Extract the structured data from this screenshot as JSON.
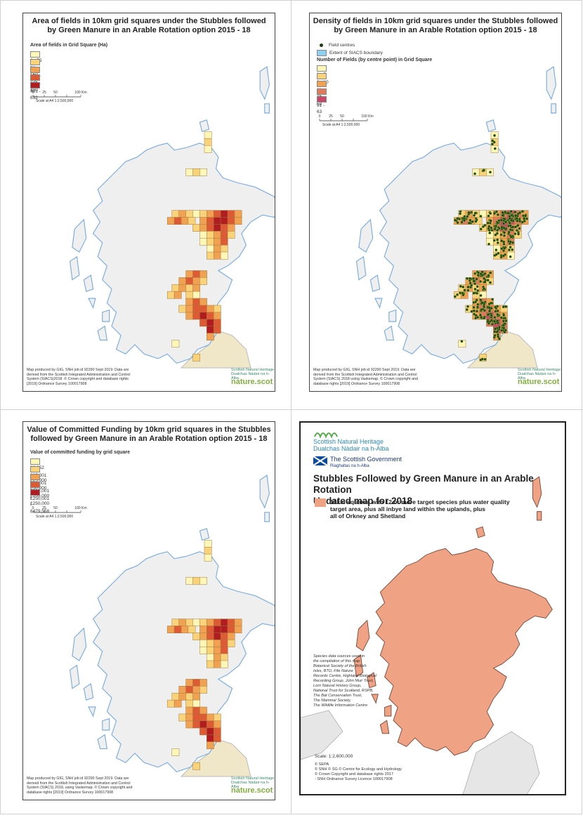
{
  "panel1": {
    "title_line1": "Area of fields in 10km grid squares under the Stubbles followed",
    "title_line2": "by Green Manure in an Arable Rotation option 2015 - 18",
    "legend_title": "Area of fields in Grid Square (Ha)",
    "legend": [
      {
        "label": "0 - 75",
        "color": "#fff6b8"
      },
      {
        "label": "76 - 150",
        "color": "#f9d27a"
      },
      {
        "label": "151 - 275",
        "color": "#f1a152"
      },
      {
        "label": "276 - 400",
        "color": "#dd5a35"
      },
      {
        "label": "401 - 632",
        "color": "#b11c21"
      }
    ],
    "scale_ticks": [
      "0",
      "25",
      "50",
      "",
      "100 Km"
    ],
    "scale_text": "Scale at A4 1:2,500,000",
    "credit": [
      "Map produced by GIG, SNH job id 92290 Sept 2019. Data are",
      "derived from the Scottish Integrated Administration and Control",
      "System (SIACS)2018. © Crown copyright and database rights",
      "[2019] Ordnance Survey 100017908"
    ],
    "logo": [
      "Scottish Natural Heritage",
      "Dualchas Nàdair na h-Alba"
    ],
    "nature": "nature.scot"
  },
  "panel2": {
    "title_line1": "Density of fields in 10km grid squares under the Stubbles followed",
    "title_line2": "by Green Manure in an Arable Rotation option 2015 - 18",
    "field_centres": "Field centres",
    "siacs": "Extent of SIACS boundary",
    "legend_title": "Number of Fields (by centre point) in Grid Square",
    "legend": [
      {
        "label": "1 - 5",
        "color": "#fff6b8"
      },
      {
        "label": "6 - 10",
        "color": "#f9d27a"
      },
      {
        "label": "11 - 25",
        "color": "#f1a152"
      },
      {
        "label": "26 - 50",
        "color": "#e07a5c"
      },
      {
        "label": "51 - 63",
        "color": "#c9486a"
      }
    ],
    "scale_ticks": [
      "0",
      "25",
      "50",
      "",
      "100 Km"
    ],
    "scale_text": "Scale at A4 1:2,500,000",
    "credit": [
      "Map produced by GIG, SNH job id 92290 Sept 2019. Data are",
      "derived from the Scottish Integrated Administration and Control",
      "System (SIACS) 2018 using Vaskemap. © Crown copyright and",
      "database rights [2019] Ordnance Survey 100017908"
    ],
    "logo": [
      "Scottish Natural Heritage",
      "Dualchas Nàdair na h-Alba"
    ],
    "nature": "nature.scot"
  },
  "panel3": {
    "title_line1": "Value of Committed Funding by 10km grid squares in the Stubbles",
    "title_line2": "followed by Green Manure in an Arable Rotation option 2015 - 18",
    "legend_title": "Value of committed funding by grid square",
    "legend": [
      {
        "label": "£3,352 - £25,000",
        "color": "#fff6b8"
      },
      {
        "label": "£25,001 - £50,000",
        "color": "#f9d27a"
      },
      {
        "label": "£50,001 - £100,000",
        "color": "#f1a152"
      },
      {
        "label": "£100,001 - £250,000",
        "color": "#dd5a35"
      },
      {
        "label": "£250,001 - £479,558",
        "color": "#b11c21"
      }
    ],
    "scale_ticks": [
      "0",
      "25",
      "50",
      "",
      "100 Km"
    ],
    "scale_text": "Scale at A4 1:2,500,000",
    "credit": [
      "Map produced by GIG, SNH job id 92290 Sept 2019. Data are",
      "derived from the Scottish Integrated Administration and Control",
      "System (SIACS) 2018, using Vaskemap. © Crown copyright and",
      "database rights [2019] Ordnance Survey 100017908"
    ],
    "logo": [
      "Scottish Natural Heritage",
      "Dualchas Nàdair na h-Alba"
    ],
    "nature": "nature.scot"
  },
  "panel4": {
    "snh1": "Scottish Natural Heritage",
    "snh2": "Dualchas Nàdair na h-Alba",
    "gov1": "The Scottish Government",
    "gov2": "Riaghaltas na h-Alba",
    "title_line1": "Stubbles Followed by Green Manure in an Arable Rotation",
    "title_line2": "Updated map for 2018",
    "legend_lines": [
      "10km squares with 12 or more target species plus water quality",
      "target area, plus all inbye land within the uplands, plus",
      "all of Orkney and Shetland"
    ],
    "legend_color": "#f0a384",
    "sources": [
      "Species data sources used in",
      "the compilation of this map",
      "Botanical Society of the British",
      "Isles, BTO, Fife Nature",
      "Records Centre, Highland Biological",
      "Recording Group, John Muir Trust,",
      "Lorn Natural History Group,",
      "National Trust for Scotland, RSPB,",
      "The Bat Conservation Trust,",
      "The Mammal Society,",
      "The Wildlife Information Centre"
    ],
    "scale": "Scale:  1:2,600,000",
    "credits": [
      "© SEPA",
      "© SNH © SG © Centre for Ecology and Hydrology",
      "© Crown Copyright and database rights 2017",
      "- SNH Ordnance Survey Licence 100017908"
    ]
  },
  "colors": {
    "land": "#efefef",
    "coast": "#7aaee0",
    "england": "#efe7c8",
    "region_fill": "#f0a384",
    "dot": "#1f3d10"
  }
}
